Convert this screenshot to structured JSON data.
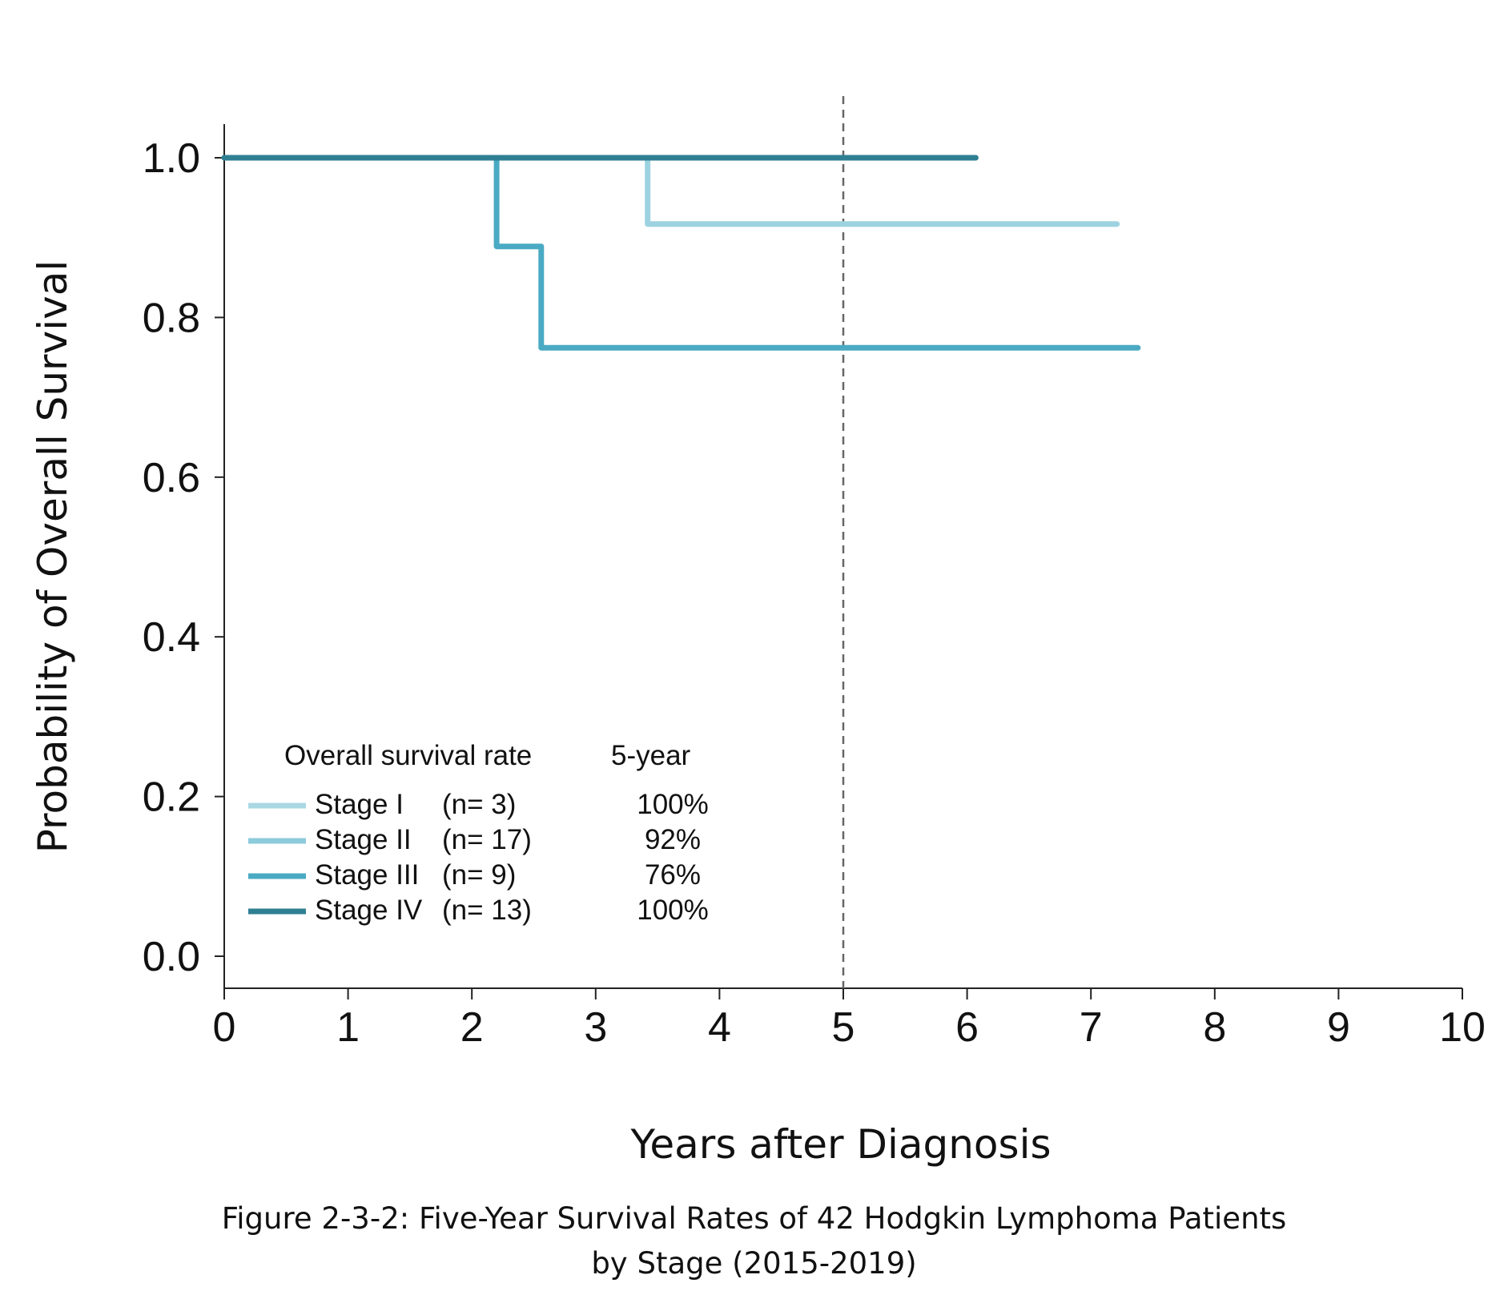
{
  "chart_data": {
    "type": "line",
    "step": true,
    "title": "",
    "xlabel": "Years after Diagnosis",
    "ylabel": "Probability of Overall Survival",
    "xlim": [
      0,
      10
    ],
    "ylim": [
      0,
      1.0
    ],
    "x_ticks": [
      "0",
      "1",
      "2",
      "3",
      "4",
      "5",
      "6",
      "7",
      "8",
      "9",
      "10"
    ],
    "y_ticks": [
      "0.0",
      "0.2",
      "0.4",
      "0.6",
      "0.8",
      "1.0"
    ],
    "reference_line": {
      "x": 5,
      "style": "dashed"
    },
    "grid": false,
    "legend": {
      "placement": "bottom-left",
      "header_left": "Overall survival rate",
      "header_right": "5-year",
      "entries": [
        {
          "name": "Stage I",
          "n": "(n= 3)",
          "rate": "100%",
          "color": "#a9d8e3"
        },
        {
          "name": "Stage II",
          "n": "(n= 17)",
          "rate": "92%",
          "color": "#8ccbdb"
        },
        {
          "name": "Stage III",
          "n": "(n= 9)",
          "rate": "76%",
          "color": "#4aaac3"
        },
        {
          "name": "Stage IV",
          "n": "(n= 13)",
          "rate": "100%",
          "color": "#2f7f93"
        }
      ]
    },
    "series": [
      {
        "name": "Stage II",
        "color": "#9dd3e0",
        "points": [
          [
            0,
            1.0
          ],
          [
            3.42,
            1.0
          ],
          [
            3.42,
            0.917
          ],
          [
            7.21,
            0.917
          ]
        ]
      },
      {
        "name": "Stage III",
        "color": "#4aaac3",
        "points": [
          [
            0,
            1.0
          ],
          [
            2.2,
            1.0
          ],
          [
            2.2,
            0.889
          ],
          [
            2.56,
            0.889
          ],
          [
            2.56,
            0.762
          ],
          [
            7.38,
            0.762
          ]
        ]
      },
      {
        "name": "Stage IV",
        "color": "#2f7f93",
        "points": [
          [
            0,
            1.0
          ],
          [
            6.07,
            1.0
          ]
        ]
      }
    ]
  },
  "caption": {
    "line1": "Figure 2-3-2: Five-Year Survival Rates of 42 Hodgkin Lymphoma Patients",
    "line2": "by Stage (2015-2019)"
  }
}
